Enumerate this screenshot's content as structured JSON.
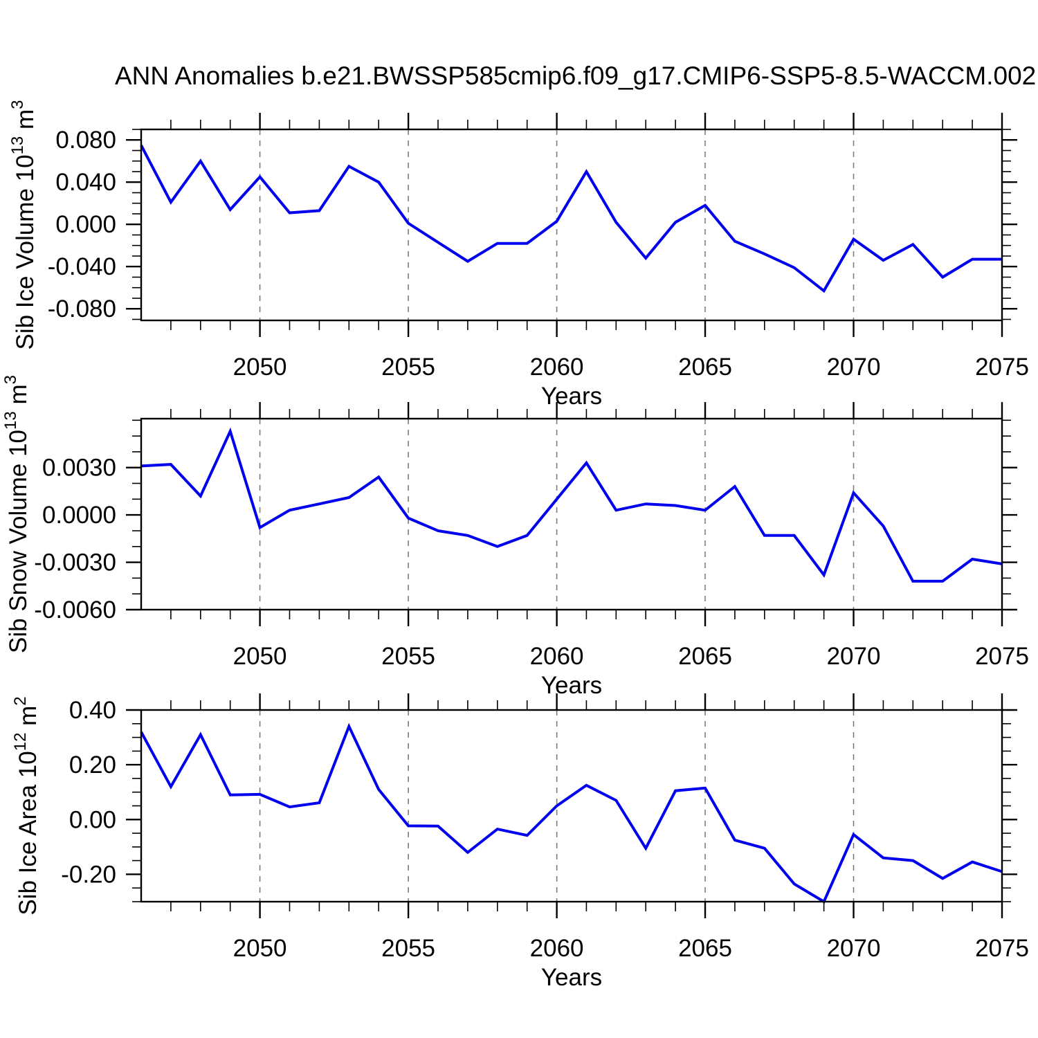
{
  "title": "ANN Anomalies b.e21.BWSSP585cmip6.f09_g17.CMIP6-SSP5-8.5-WACCM.002",
  "colors": {
    "line": "#0000EE",
    "grid": "#7d7d7d",
    "axis": "#000000",
    "text": "#000000",
    "background": "#FFFFFF"
  },
  "years": [
    2046,
    2047,
    2048,
    2049,
    2050,
    2051,
    2052,
    2053,
    2054,
    2055,
    2056,
    2057,
    2058,
    2059,
    2060,
    2061,
    2062,
    2063,
    2064,
    2065,
    2066,
    2067,
    2068,
    2069,
    2070,
    2071,
    2072,
    2073,
    2074,
    2075
  ],
  "x_axis": {
    "label": "Years",
    "range": [
      2046,
      2075
    ],
    "major_ticks": [
      2050,
      2055,
      2060,
      2065,
      2070,
      2075
    ],
    "minor_step": 1,
    "gridline_years": [
      2050,
      2055,
      2060,
      2065,
      2070
    ],
    "grid_style": "dashed"
  },
  "chart_data": [
    {
      "id": "sib-ice-volume",
      "type": "line",
      "ylabel": "Sib Ice Volume 10^13 m^3",
      "ylabel_parts": [
        {
          "t": "Sib Ice Volume 10"
        },
        {
          "t": "13",
          "sup": true
        },
        {
          "t": " m"
        },
        {
          "t": "3",
          "sup": true
        }
      ],
      "xlabel": "Years",
      "ylim": [
        -0.091,
        0.09
      ],
      "yticks": [
        {
          "label": "0.080",
          "value": 0.08
        },
        {
          "label": "0.040",
          "value": 0.04
        },
        {
          "label": "0.000",
          "value": 0.0
        },
        {
          "label": "-0.040",
          "value": -0.04
        },
        {
          "label": "-0.080",
          "value": -0.08
        }
      ],
      "yminor_step": 0.01,
      "values": [
        0.075,
        0.021,
        0.06,
        0.014,
        0.045,
        0.011,
        0.013,
        0.055,
        0.04,
        0.001,
        -0.017,
        -0.035,
        -0.018,
        -0.018,
        0.003,
        0.05,
        0.002,
        -0.032,
        0.002,
        0.018,
        -0.016,
        -0.028,
        -0.041,
        -0.063,
        -0.014,
        -0.034,
        -0.019,
        -0.05,
        -0.033,
        -0.033
      ]
    },
    {
      "id": "sib-snow-volume",
      "type": "line",
      "ylabel": "Sib Snow Volume 10^13 m^3",
      "ylabel_parts": [
        {
          "t": "Sib Snow Volume 10"
        },
        {
          "t": "13",
          "sup": true
        },
        {
          "t": " m"
        },
        {
          "t": "3",
          "sup": true
        }
      ],
      "xlabel": "Years",
      "ylim": [
        -0.006,
        0.0061
      ],
      "yticks": [
        {
          "label": "0.0030",
          "value": 0.003
        },
        {
          "label": "0.0000",
          "value": 0.0
        },
        {
          "label": "-0.0030",
          "value": -0.003
        },
        {
          "label": "-0.0060",
          "value": -0.006
        }
      ],
      "yminor_step": 0.001,
      "values": [
        0.0031,
        0.0032,
        0.0012,
        0.0053,
        -0.0008,
        0.0003,
        0.0007,
        0.0011,
        0.0024,
        -0.0002,
        -0.001,
        -0.0013,
        -0.002,
        -0.0013,
        0.001,
        0.0033,
        0.0003,
        0.0007,
        0.0006,
        0.0003,
        0.0018,
        -0.0013,
        -0.0013,
        -0.0038,
        0.0014,
        -0.0007,
        -0.0042,
        -0.0042,
        -0.0028,
        -0.0031
      ]
    },
    {
      "id": "sib-ice-area",
      "type": "line",
      "ylabel": "Sib Ice Area 10^12 m^2",
      "ylabel_parts": [
        {
          "t": "Sib Ice Area 10"
        },
        {
          "t": "12",
          "sup": true
        },
        {
          "t": " m"
        },
        {
          "t": "2",
          "sup": true
        }
      ],
      "xlabel": "Years",
      "ylim": [
        -0.3,
        0.4
      ],
      "yticks": [
        {
          "label": "0.40",
          "value": 0.4
        },
        {
          "label": "0.20",
          "value": 0.2
        },
        {
          "label": "0.00",
          "value": 0.0
        },
        {
          "label": "-0.20",
          "value": -0.2
        }
      ],
      "yminor_step": 0.05,
      "values": [
        0.32,
        0.12,
        0.31,
        0.09,
        0.092,
        0.046,
        0.061,
        0.34,
        0.11,
        -0.023,
        -0.024,
        -0.12,
        -0.035,
        -0.058,
        0.05,
        0.125,
        0.07,
        -0.105,
        0.105,
        0.115,
        -0.075,
        -0.105,
        -0.235,
        -0.3,
        -0.055,
        -0.14,
        -0.15,
        -0.215,
        -0.155,
        -0.19
      ]
    }
  ]
}
